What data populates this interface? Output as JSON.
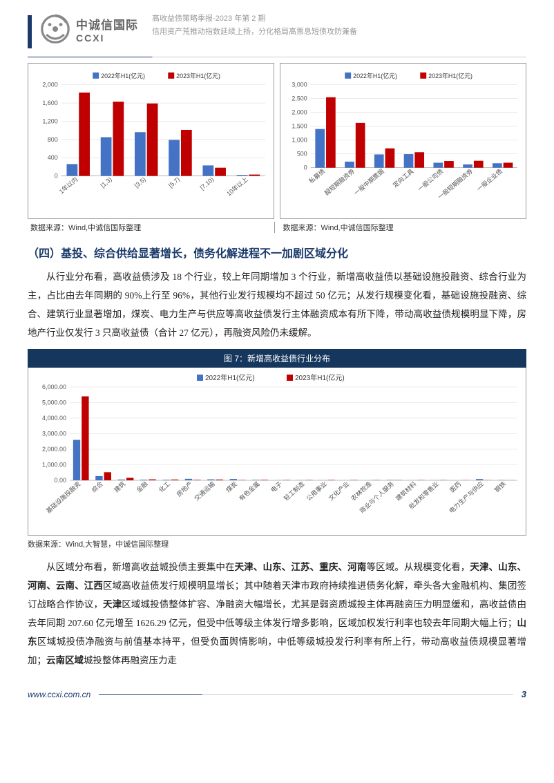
{
  "header": {
    "logo_cn": "中诚信国际",
    "logo_en": "CCXI",
    "line1": "高收益债策略季报-2023 年第 2 期",
    "line2": "信用资产荒推动指数延续上扬，分化格局高票息短债攻防兼备"
  },
  "chart_left": {
    "legend": [
      "2022年H1(亿元)",
      "2023年H1(亿元)"
    ],
    "colors": [
      "#4472c4",
      "#c00000"
    ],
    "categories": [
      "1年以内",
      "[1,3)",
      "[3,5)",
      "[5,7)",
      "[7,10)",
      "10年以上"
    ],
    "series_2022": [
      260,
      850,
      960,
      790,
      230,
      20
    ],
    "series_2023": [
      1830,
      1630,
      1590,
      1010,
      180,
      30
    ],
    "ymax": 2000,
    "ytick": 400,
    "source": "数据来源：Wind,中诚信国际整理"
  },
  "chart_right": {
    "legend": [
      "2022年H1(亿元)",
      "2023年H1(亿元)"
    ],
    "colors": [
      "#4472c4",
      "#c00000"
    ],
    "categories": [
      "私募债",
      "超短期融资券",
      "一般中期票据",
      "定向工具",
      "一般公司债",
      "一般短期融资券",
      "一般企业债"
    ],
    "series_2022": [
      1400,
      220,
      480,
      490,
      180,
      120,
      160
    ],
    "series_2023": [
      2550,
      1620,
      700,
      560,
      240,
      250,
      180
    ],
    "ymax": 3000,
    "ytick": 500,
    "source": "数据来源：Wind,中诚信国际整理"
  },
  "section4": {
    "heading": "（四）基投、综合供给显著增长，债务化解进程不一加剧区域分化",
    "para1": "从行业分布看，高收益债涉及 18 个行业，较上年同期增加 3 个行业，新增高收益债以基础设施投融资、综合行业为主，占比由去年同期的 90%上行至 96%，其他行业发行规模均不超过 50 亿元；从发行规模变化看，基础设施投融资、综合、建筑行业显著增加，煤炭、电力生产与供应等高收益债发行主体融资成本有所下降，带动高收益债规模明显下降，房地产行业仅发行 3 只高收益债（合计 27 亿元），再融资风险仍未缓解。"
  },
  "fig7": {
    "title": "图 7：新增高收益债行业分布",
    "legend": [
      "2022年H1(亿元)",
      "2023年H1(亿元)"
    ],
    "colors": [
      "#4472c4",
      "#c00000"
    ],
    "categories": [
      "基础设施投融资",
      "综合",
      "建筑",
      "金融",
      "化工",
      "房地产",
      "交通运输",
      "煤炭",
      "有色金属",
      "电子",
      "轻工制造",
      "公用事业",
      "文化产业",
      "农林牧渔",
      "商业与个人服务",
      "建筑材料",
      "批发和零售业",
      "医药",
      "电力生产与供应",
      "钢铁"
    ],
    "series_2022": [
      2600,
      270,
      50,
      40,
      35,
      95,
      60,
      85,
      30,
      10,
      15,
      10,
      5,
      5,
      25,
      5,
      10,
      5,
      80,
      20
    ],
    "series_2023": [
      5400,
      520,
      160,
      60,
      50,
      30,
      50,
      20,
      30,
      20,
      20,
      25,
      20,
      15,
      15,
      15,
      15,
      10,
      10,
      5
    ],
    "ymax": 6000,
    "ytick": 1000,
    "source": "数据来源：Wind,大智慧，中诚信国际整理"
  },
  "para2_parts": [
    {
      "t": "从区域分布看，新增高收益城投债主要集中在",
      "b": false
    },
    {
      "t": "天津、山东、江苏、重庆、河南",
      "b": true
    },
    {
      "t": "等区域。从规模变化看，",
      "b": false
    },
    {
      "t": "天津、山东、河南、云南、江西",
      "b": true
    },
    {
      "t": "区域高收益债发行规模明显增长；其中随着天津市政府持续推进债务化解，牵头各大金融机构、集团签订战略合作协议，",
      "b": false
    },
    {
      "t": "天津",
      "b": true
    },
    {
      "t": "区域城投债整体扩容、净融资大幅增长，尤其是弱资质城投主体再融资压力明显缓和，高收益债由去年同期 207.60 亿元增至 1626.29 亿元，但受中低等级主体发行增多影响，区域加权发行利率也较去年同期大幅上行；",
      "b": false
    },
    {
      "t": "山东",
      "b": true
    },
    {
      "t": "区域城投债净融资与前值基本持平，但受负面舆情影响，中低等级城投发行利率有所上行，带动高收益债规模显著增加；",
      "b": false
    },
    {
      "t": "云南区域",
      "b": true
    },
    {
      "t": "城投整体再融资压力走",
      "b": false
    }
  ],
  "footer": {
    "url": "www.ccxi.com.cn",
    "page": "3"
  }
}
